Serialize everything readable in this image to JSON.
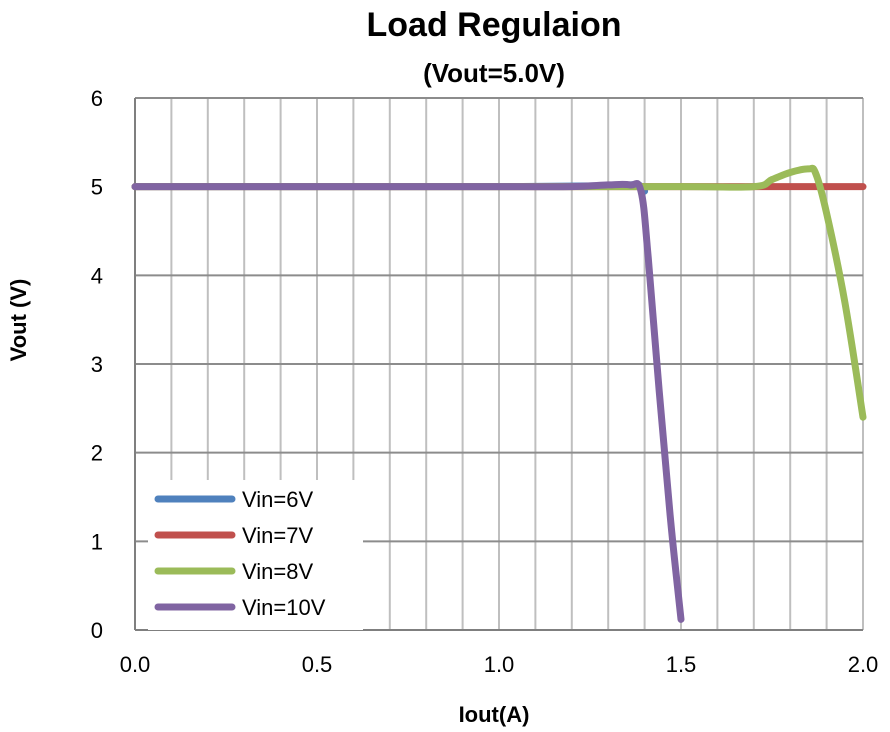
{
  "chart_data": {
    "type": "line",
    "title": "Load Regulaion",
    "subtitle": "(Vout=5.0V)",
    "xlabel": "Iout(A)",
    "ylabel": "Vout (V)",
    "xlim": [
      0,
      2
    ],
    "ylim": [
      0,
      6
    ],
    "x_ticks": [
      "0.0",
      "0.5",
      "1.0",
      "1.5",
      "2.0"
    ],
    "y_ticks": [
      "0",
      "1",
      "2",
      "3",
      "4",
      "5",
      "6"
    ],
    "grid": true,
    "legend_position": "bottom-left",
    "series": [
      {
        "name": "Vin=6V",
        "color": "#4F81BD",
        "x": [
          0,
          0.5,
          1.0,
          1.3,
          1.38,
          1.4
        ],
        "y": [
          5.0,
          5.0,
          5.0,
          5.01,
          5.02,
          4.95
        ]
      },
      {
        "name": "Vin=7V",
        "color": "#C0504D",
        "x": [
          0,
          0.5,
          1.0,
          1.5,
          1.8,
          2.0
        ],
        "y": [
          5.0,
          5.0,
          5.0,
          5.0,
          5.0,
          5.0
        ]
      },
      {
        "name": "Vin=8V",
        "color": "#9BBB59",
        "x": [
          0,
          0.5,
          1.0,
          1.5,
          1.7,
          1.75,
          1.8,
          1.85,
          1.87,
          1.9,
          1.95,
          2.0
        ],
        "y": [
          5.0,
          5.0,
          5.0,
          5.0,
          5.0,
          5.08,
          5.16,
          5.2,
          5.15,
          4.7,
          3.7,
          2.4
        ]
      },
      {
        "name": "Vin=10V",
        "color": "#8064A2",
        "x": [
          0,
          0.5,
          1.0,
          1.2,
          1.3,
          1.36,
          1.39,
          1.41,
          1.44,
          1.47,
          1.49,
          1.5
        ],
        "y": [
          5.0,
          5.0,
          5.0,
          5.0,
          5.02,
          5.02,
          4.95,
          4.2,
          2.7,
          1.3,
          0.5,
          0.12
        ]
      }
    ]
  }
}
